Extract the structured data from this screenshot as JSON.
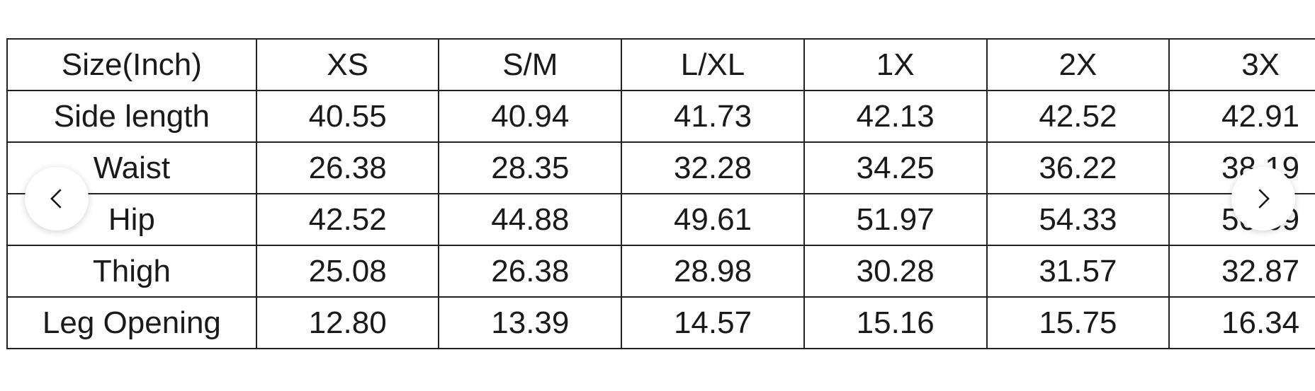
{
  "table": {
    "header": [
      "Size(Inch)",
      "XS",
      "S/M",
      "L/XL",
      "1X",
      "2X",
      "3X"
    ],
    "rows": [
      [
        "Side length",
        "40.55",
        "40.94",
        "41.73",
        "42.13",
        "42.52",
        "42.91"
      ],
      [
        "Waist",
        "26.38",
        "28.35",
        "32.28",
        "34.25",
        "36.22",
        "38.19"
      ],
      [
        "Hip",
        "42.52",
        "44.88",
        "49.61",
        "51.97",
        "54.33",
        "56.69"
      ],
      [
        "Thigh",
        "25.08",
        "26.38",
        "28.98",
        "30.28",
        "31.57",
        "32.87"
      ],
      [
        "Leg Opening",
        "12.80",
        "13.39",
        "14.57",
        "15.16",
        "15.75",
        "16.34"
      ]
    ]
  },
  "carousel": {
    "prev_icon": "chevron-left-icon",
    "next_icon": "chevron-right-icon"
  }
}
